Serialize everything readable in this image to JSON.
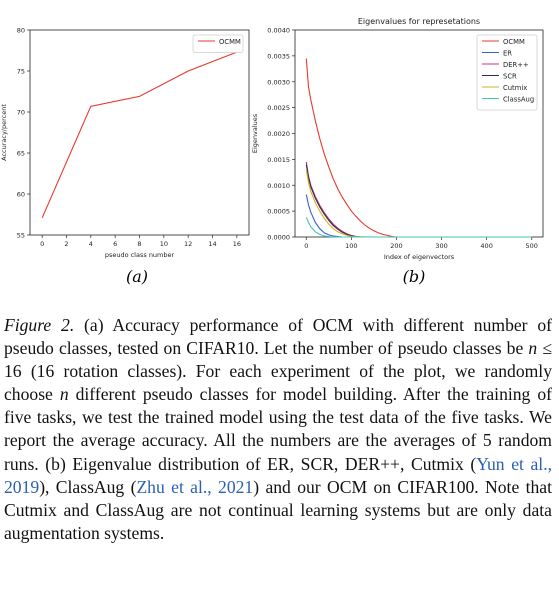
{
  "figure": {
    "panel_a_label": "(a)",
    "panel_b_label": "(b)"
  },
  "caption": {
    "label": "Figure 2.",
    "seg1": " (a) Accuracy performance of OCM with different number of pseudo classes, tested on CIFAR10. Let the number of pseudo classes be ",
    "math_n": "n",
    "math_rel": " ≤ 16",
    "seg2": " (16 rotation classes). For each experiment of the plot, we randomly choose ",
    "math_n2": "n",
    "seg3": " different pseudo classes for model building. After the training of five tasks, we test the trained model using the test data of the five tasks. We report the average accuracy. All the numbers are the averages of 5 random runs. (b) Eigenvalue distribution of ER, SCR, DER++, Cutmix (",
    "cite1": "Yun et al., 2019",
    "seg4": "), ClassAug (",
    "cite2": "Zhu et al., 2021",
    "seg5": ") and our OCM on CIFAR100. Note that Cutmix and ClassAug are not continual learning systems but are only data augmentation systems."
  },
  "chart_data": [
    {
      "type": "line",
      "title": "",
      "xlabel": "pseudo class number",
      "ylabel": "Accuracy/percent",
      "xlim": [
        -1,
        17
      ],
      "ylim": [
        55,
        80
      ],
      "xticks": [
        0,
        2,
        4,
        6,
        8,
        10,
        12,
        14,
        16
      ],
      "yticks": [
        55,
        60,
        65,
        70,
        75,
        80
      ],
      "grid": false,
      "legend_position": "top-right",
      "series": [
        {
          "name": "OCMM",
          "color": "#e8392b",
          "x": [
            0,
            4,
            8,
            12,
            16
          ],
          "y": [
            57.1,
            70.7,
            71.9,
            75.0,
            77.3
          ]
        }
      ]
    },
    {
      "type": "line",
      "title": "Eigenvalues for represetations",
      "xlabel": "Index of eigenvectors",
      "ylabel": "Eigenvalues",
      "xlim": [
        -25,
        525
      ],
      "ylim": [
        0,
        0.004
      ],
      "xticks": [
        0,
        100,
        200,
        300,
        400,
        500
      ],
      "yticks": [
        0.0,
        0.0005,
        0.001,
        0.0015,
        0.002,
        0.0025,
        0.003,
        0.0035,
        0.004
      ],
      "ytick_labels": [
        "0.0000",
        "0.0005",
        "0.0010",
        "0.0015",
        "0.0020",
        "0.0025",
        "0.0030",
        "0.0035",
        "0.0040"
      ],
      "grid": false,
      "legend_position": "top-right",
      "series": [
        {
          "name": "OCMM",
          "color": "#e8392b",
          "x": [
            0,
            5,
            10,
            20,
            30,
            40,
            50,
            60,
            70,
            80,
            90,
            100,
            110,
            120,
            130,
            140,
            150,
            160,
            170,
            180,
            190,
            200,
            250,
            300,
            400,
            500
          ],
          "y": [
            0.00345,
            0.0029,
            0.00265,
            0.00225,
            0.0019,
            0.0016,
            0.00135,
            0.00112,
            0.00093,
            0.00077,
            0.00063,
            0.0005,
            0.0004,
            0.00031,
            0.00023,
            0.00017,
            0.00012,
            8e-05,
            5e-05,
            3e-05,
            1e-05,
            0.0,
            0.0,
            0.0,
            0.0,
            0.0
          ]
        },
        {
          "name": "ER",
          "color": "#3a5fcd",
          "x": [
            0,
            5,
            10,
            20,
            30,
            40,
            50,
            60,
            70,
            80,
            100,
            150,
            200,
            300,
            400,
            500
          ],
          "y": [
            0.00082,
            0.00062,
            0.00048,
            0.00028,
            0.00016,
            8e-05,
            4e-05,
            2e-05,
            1e-05,
            0.0,
            0.0,
            0.0,
            0.0,
            0.0,
            0.0,
            0.0
          ]
        },
        {
          "name": "DER++",
          "color": "#c8336e",
          "x": [
            0,
            5,
            10,
            20,
            30,
            40,
            50,
            60,
            70,
            80,
            90,
            100,
            110,
            120,
            150,
            200,
            300,
            400,
            500
          ],
          "y": [
            0.00145,
            0.00118,
            0.001,
            0.00078,
            0.00061,
            0.00047,
            0.00035,
            0.00025,
            0.00017,
            0.00011,
            6e-05,
            3e-05,
            1e-05,
            0.0,
            0.0,
            0.0,
            0.0,
            0.0,
            0.0
          ]
        },
        {
          "name": "SCR",
          "color": "#2e2a5a",
          "x": [
            0,
            5,
            10,
            20,
            30,
            40,
            50,
            60,
            70,
            80,
            90,
            100,
            110,
            120,
            150,
            200,
            300,
            400,
            500
          ],
          "y": [
            0.0014,
            0.00115,
            0.00097,
            0.00075,
            0.00058,
            0.00044,
            0.00032,
            0.00022,
            0.00015,
            9e-05,
            5e-05,
            2e-05,
            1e-05,
            0.0,
            0.0,
            0.0,
            0.0,
            0.0,
            0.0
          ]
        },
        {
          "name": "Cutmix",
          "color": "#d4b21f",
          "x": [
            0,
            5,
            10,
            20,
            30,
            40,
            50,
            60,
            70,
            80,
            90,
            100,
            150,
            200,
            300,
            400,
            500
          ],
          "y": [
            0.0013,
            0.00105,
            0.00088,
            0.00066,
            0.0005,
            0.00036,
            0.00025,
            0.00016,
            0.0001,
            6e-05,
            3e-05,
            1e-05,
            0.0,
            0.0,
            0.0,
            0.0,
            0.0
          ]
        },
        {
          "name": "ClassAug",
          "color": "#3fc4c0",
          "x": [
            0,
            5,
            10,
            20,
            30,
            40,
            50,
            60,
            80,
            100,
            200,
            300,
            400,
            500
          ],
          "y": [
            0.00038,
            0.00028,
            0.0002,
            0.0001,
            5e-05,
            2e-05,
            1e-05,
            0.0,
            0.0,
            0.0,
            0.0,
            0.0,
            0.0,
            0.0
          ]
        }
      ]
    }
  ]
}
